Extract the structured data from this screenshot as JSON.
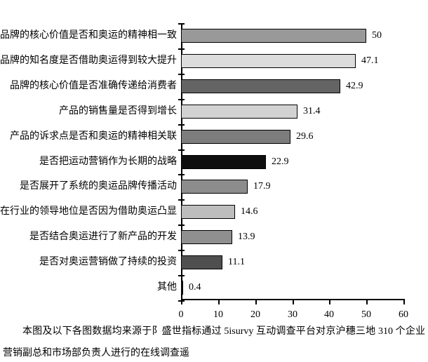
{
  "chart_data": {
    "type": "bar",
    "orientation": "horizontal",
    "title": "",
    "xlabel": "",
    "ylabel": "",
    "xlim": [
      0,
      60
    ],
    "x_ticks": [
      0,
      10,
      20,
      30,
      40,
      50,
      60
    ],
    "grid": false,
    "legend": false,
    "categories": [
      "品牌的核心价值是否和奥运的精神相一致",
      "品牌的知名度是否借助奥运得到较大提升",
      "品牌的核心价值是否准确传递给消费者",
      "产品的销售量是否得到增长",
      "产品的诉求点是否和奥运的精神相关联",
      "是否把运动营销作为长期的战略",
      "是否展开了系统的奥运品牌传播活动",
      "在行业的领导地位是否因为借助奥运凸显",
      "是否结合奥运进行了新产品的开发",
      "是否对奥运营销做了持续的投资",
      "其他"
    ],
    "values": [
      50,
      47.1,
      42.9,
      31.4,
      29.6,
      22.9,
      17.9,
      14.6,
      13.9,
      11.1,
      0.4
    ],
    "value_labels": [
      "50",
      "47.1",
      "42.9",
      "31.4",
      "29.6",
      "22.9",
      "17.9",
      "14.6",
      "13.9",
      "11.1",
      "0.4"
    ],
    "bar_colors": [
      "#999999",
      "#dcdcdc",
      "#646464",
      "#d2d2d2",
      "#7d7d7d",
      "#0f0f0f",
      "#8c8c8c",
      "#bdbdbd",
      "#8f8f8f",
      "#4f4f4f",
      "#141414"
    ],
    "axis_color": "#000000"
  },
  "footer": {
    "note": "本图及以下各图数据均来源于阝盛世指标通过 5isurvy 互动调查平台对京沪穗三地 310 个企业营销副总和市场部负责人进行的在线调查遥"
  }
}
